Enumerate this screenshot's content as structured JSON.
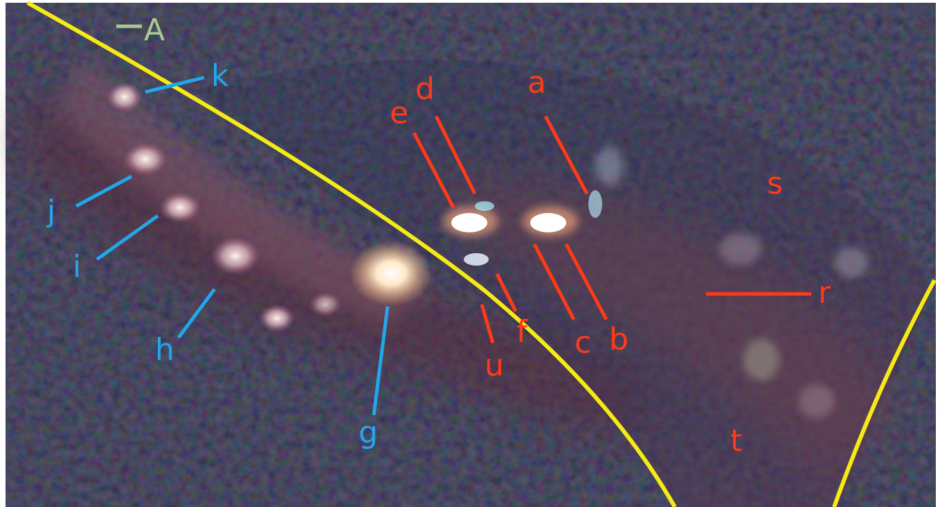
{
  "image": {
    "description_free": true,
    "colors": {
      "background": "#0b0d1e",
      "curve": "#f5ea16",
      "red_label": "#ff3a18",
      "blue_label": "#23a6ea",
      "green_label": "#a9c98e"
    }
  },
  "labels": {
    "A": "A",
    "red": {
      "a": "a",
      "b": "b",
      "c": "c",
      "d": "d",
      "e": "e",
      "f": "f",
      "r": "r",
      "s": "s",
      "t": "t",
      "u": "u"
    },
    "blue": {
      "g": "g",
      "h": "h",
      "i": "i",
      "j": "j",
      "k": "k"
    }
  }
}
